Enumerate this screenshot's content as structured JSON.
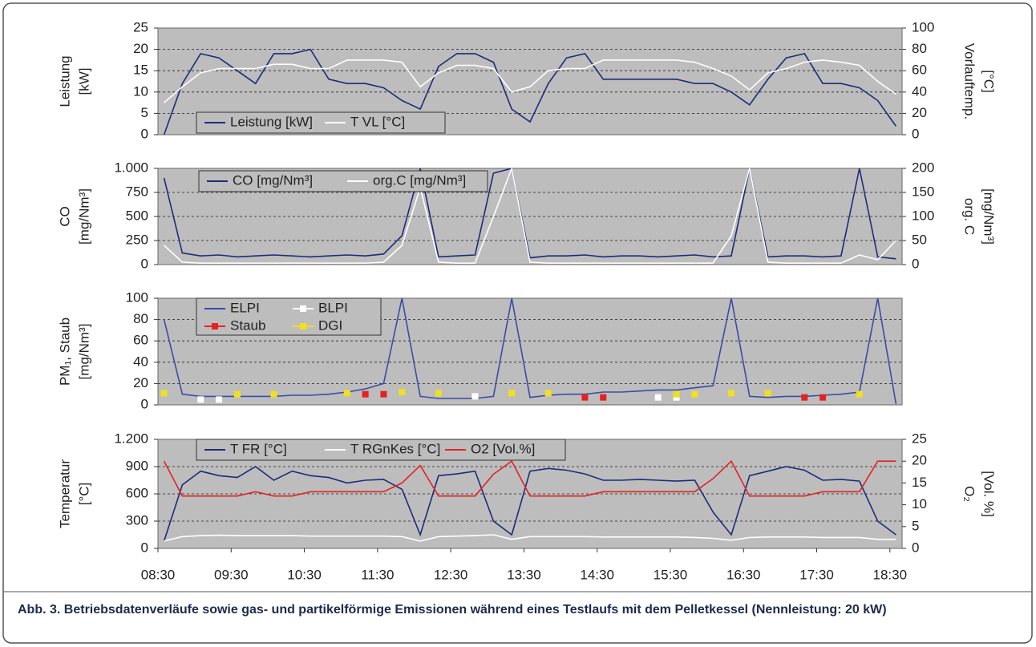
{
  "chart_data": [
    {
      "type": "line",
      "ylabel": [
        "Leistung",
        "[kW]"
      ],
      "y2label": [
        "Vorlauftemp.",
        "[°C]"
      ],
      "x": [
        "08:35",
        "08:50",
        "09:05",
        "09:20",
        "09:35",
        "09:50",
        "10:05",
        "10:20",
        "10:35",
        "10:50",
        "11:05",
        "11:20",
        "11:35",
        "11:50",
        "12:05",
        "12:20",
        "12:35",
        "12:50",
        "13:05",
        "13:20",
        "13:35",
        "13:50",
        "14:05",
        "14:20",
        "14:35",
        "14:50",
        "15:05",
        "15:20",
        "15:35",
        "15:50",
        "16:05",
        "16:20",
        "16:35",
        "16:50",
        "17:05",
        "17:20",
        "17:35",
        "17:50",
        "18:05",
        "18:20",
        "18:35"
      ],
      "xlim": [
        "08:30",
        "18:40"
      ],
      "ylim": [
        0,
        25
      ],
      "yticks": [
        0,
        5,
        10,
        15,
        20,
        25
      ],
      "y2lim": [
        0,
        100
      ],
      "y2ticks": [
        0,
        20,
        40,
        60,
        80,
        100
      ],
      "grid": true,
      "legend": "bottom-left",
      "series": [
        {
          "name": "Leistung [kW]",
          "color": "#1f2a7a",
          "values": [
            0,
            12,
            19,
            18,
            15,
            12,
            19,
            19,
            20,
            13,
            12,
            12,
            11,
            8,
            6,
            16,
            19,
            19,
            17,
            6,
            3,
            12,
            18,
            19,
            13,
            13,
            13,
            13,
            13,
            12,
            12,
            10,
            7,
            13,
            18,
            19,
            12,
            12,
            11,
            8,
            2
          ]
        },
        {
          "name": "T VL [°C]",
          "color": "#ffffff",
          "axis": "y2",
          "values": [
            30,
            45,
            58,
            62,
            62,
            62,
            66,
            66,
            62,
            62,
            70,
            70,
            70,
            68,
            45,
            58,
            65,
            65,
            62,
            40,
            45,
            60,
            62,
            62,
            70,
            70,
            70,
            70,
            70,
            68,
            62,
            55,
            42,
            58,
            62,
            68,
            70,
            68,
            65,
            50,
            38
          ]
        }
      ]
    },
    {
      "type": "line",
      "ylabel": [
        "CO",
        "[mg/Nm³]"
      ],
      "y2label": [
        "org. C",
        "[mg/Nm³]"
      ],
      "x": [
        "08:35",
        "08:50",
        "09:05",
        "09:20",
        "09:35",
        "09:50",
        "10:05",
        "10:20",
        "10:35",
        "10:50",
        "11:05",
        "11:20",
        "11:35",
        "11:50",
        "12:05",
        "12:20",
        "12:35",
        "12:50",
        "13:05",
        "13:20",
        "13:35",
        "13:50",
        "14:05",
        "14:20",
        "14:35",
        "14:50",
        "15:05",
        "15:20",
        "15:35",
        "15:50",
        "16:05",
        "16:20",
        "16:35",
        "16:50",
        "17:05",
        "17:20",
        "17:35",
        "17:50",
        "18:05",
        "18:20",
        "18:35"
      ],
      "xlim": [
        "08:30",
        "18:40"
      ],
      "ylim": [
        0,
        1000
      ],
      "yticks": [
        0,
        250,
        500,
        750,
        {
          "value": 1000,
          "label": "1.000"
        }
      ],
      "y2lim": [
        0,
        200
      ],
      "y2ticks": [
        0,
        50,
        100,
        150,
        200
      ],
      "grid": true,
      "legend": "top-left",
      "series": [
        {
          "name": "CO [mg/Nm³]",
          "color": "#1f2a7a",
          "values": [
            900,
            120,
            90,
            100,
            80,
            90,
            100,
            90,
            80,
            90,
            100,
            90,
            110,
            300,
            1000,
            80,
            90,
            100,
            950,
            1000,
            70,
            90,
            90,
            100,
            80,
            90,
            90,
            80,
            90,
            100,
            80,
            90,
            1000,
            80,
            90,
            90,
            80,
            90,
            1000,
            80,
            60
          ]
        },
        {
          "name": "org.C [mg/Nm³]",
          "color": "#ffffff",
          "axis": "y2",
          "values": [
            40,
            5,
            3,
            3,
            3,
            3,
            3,
            3,
            3,
            3,
            3,
            3,
            5,
            40,
            160,
            5,
            3,
            3,
            100,
            200,
            5,
            3,
            3,
            3,
            3,
            3,
            3,
            3,
            3,
            3,
            3,
            60,
            200,
            5,
            3,
            3,
            3,
            3,
            20,
            10,
            50
          ]
        }
      ]
    },
    {
      "type": "line",
      "ylabel": [
        "PM₁, Staub",
        "[mg/Nm³]"
      ],
      "x": [
        "08:35",
        "08:50",
        "09:05",
        "09:20",
        "09:35",
        "09:50",
        "10:05",
        "10:20",
        "10:35",
        "10:50",
        "11:05",
        "11:20",
        "11:35",
        "11:50",
        "12:05",
        "12:20",
        "12:35",
        "12:50",
        "13:05",
        "13:20",
        "13:35",
        "13:50",
        "14:05",
        "14:20",
        "14:35",
        "14:50",
        "15:05",
        "15:20",
        "15:35",
        "15:50",
        "16:05",
        "16:20",
        "16:35",
        "16:50",
        "17:05",
        "17:20",
        "17:35",
        "17:50",
        "18:05",
        "18:20",
        "18:35"
      ],
      "xlim": [
        "08:30",
        "18:40"
      ],
      "ylim": [
        0,
        100
      ],
      "yticks": [
        0,
        20,
        40,
        60,
        80,
        100
      ],
      "grid": true,
      "legend": "top-left",
      "series": [
        {
          "name": "ELPI",
          "color": "#3a4ca8",
          "values": [
            80,
            10,
            8,
            8,
            8,
            8,
            8,
            9,
            9,
            10,
            12,
            15,
            20,
            100,
            8,
            6,
            6,
            6,
            8,
            100,
            7,
            9,
            10,
            10,
            12,
            12,
            13,
            14,
            14,
            16,
            18,
            100,
            8,
            7,
            8,
            8,
            9,
            10,
            12,
            100,
            1
          ]
        },
        {
          "name": "BLPI",
          "color": "#ffffff",
          "marker": "square",
          "values": [
            null,
            null,
            5,
            5,
            null,
            null,
            null,
            null,
            null,
            null,
            null,
            null,
            null,
            null,
            null,
            null,
            null,
            8,
            null,
            null,
            null,
            null,
            null,
            null,
            null,
            null,
            null,
            7,
            7,
            null,
            null,
            null,
            null,
            null,
            null,
            null,
            null,
            null,
            null,
            null,
            null
          ]
        },
        {
          "name": "Staub",
          "color": "#e52222",
          "marker": "square",
          "values": [
            null,
            null,
            null,
            null,
            null,
            null,
            null,
            null,
            null,
            null,
            null,
            10,
            10,
            null,
            null,
            null,
            null,
            null,
            null,
            null,
            null,
            null,
            null,
            7,
            7,
            null,
            null,
            null,
            null,
            null,
            null,
            null,
            null,
            null,
            null,
            7,
            7,
            null,
            null,
            null,
            null
          ]
        },
        {
          "name": "DGI",
          "color": "#f0e020",
          "marker": "square",
          "values": [
            11,
            null,
            null,
            null,
            10,
            null,
            10,
            null,
            null,
            null,
            11,
            null,
            null,
            12,
            null,
            11,
            null,
            null,
            null,
            11,
            null,
            11,
            null,
            null,
            null,
            null,
            null,
            null,
            10,
            10,
            null,
            11,
            null,
            11,
            null,
            null,
            null,
            null,
            10,
            null,
            null
          ]
        }
      ]
    },
    {
      "type": "line",
      "ylabel": [
        "Temperatur",
        "[°C]"
      ],
      "y2label": [
        "O₂",
        "[Vol. %]"
      ],
      "x": [
        "08:35",
        "08:50",
        "09:05",
        "09:20",
        "09:35",
        "09:50",
        "10:05",
        "10:20",
        "10:35",
        "10:50",
        "11:05",
        "11:20",
        "11:35",
        "11:50",
        "12:05",
        "12:20",
        "12:35",
        "12:50",
        "13:05",
        "13:20",
        "13:35",
        "13:50",
        "14:05",
        "14:20",
        "14:35",
        "14:50",
        "15:05",
        "15:20",
        "15:35",
        "15:50",
        "16:05",
        "16:20",
        "16:35",
        "16:50",
        "17:05",
        "17:20",
        "17:35",
        "17:50",
        "18:05",
        "18:20",
        "18:35"
      ],
      "xlim": [
        "08:30",
        "18:40"
      ],
      "xticks": [
        "08:30",
        "09:30",
        "10:30",
        "11:30",
        "12:30",
        "13:30",
        "14:30",
        "15:30",
        "16:30",
        "17:30",
        "18:30"
      ],
      "ylim": [
        0,
        1200
      ],
      "yticks": [
        0,
        300,
        600,
        900,
        {
          "value": 1200,
          "label": "1.200"
        }
      ],
      "y2lim": [
        0,
        25
      ],
      "y2ticks": [
        0,
        5,
        10,
        15,
        20,
        25
      ],
      "grid": true,
      "legend": "top-left",
      "series": [
        {
          "name": "T FR [°C]",
          "color": "#1f2a7a",
          "values": [
            80,
            700,
            850,
            800,
            780,
            900,
            750,
            850,
            800,
            780,
            720,
            750,
            760,
            650,
            150,
            800,
            820,
            850,
            300,
            150,
            850,
            880,
            860,
            820,
            750,
            750,
            760,
            750,
            740,
            750,
            400,
            150,
            800,
            850,
            900,
            860,
            750,
            760,
            740,
            300,
            150
          ]
        },
        {
          "name": "T RGnKes [°C]",
          "color": "#ffffff",
          "values": [
            80,
            130,
            140,
            145,
            140,
            140,
            140,
            140,
            135,
            135,
            135,
            135,
            135,
            130,
            80,
            130,
            135,
            140,
            150,
            100,
            130,
            130,
            130,
            130,
            125,
            125,
            125,
            125,
            125,
            120,
            110,
            90,
            120,
            125,
            125,
            125,
            120,
            120,
            120,
            100,
            100
          ]
        },
        {
          "name": "O2 [Vol.%]",
          "color": "#e52222",
          "axis": "y2",
          "values": [
            20,
            12,
            12,
            12,
            12,
            13,
            12,
            12,
            13,
            13,
            13,
            13,
            13,
            15,
            19,
            12,
            12,
            12,
            17,
            20,
            12,
            12,
            12,
            12,
            13,
            13,
            13,
            13,
            13,
            13,
            16,
            20,
            12,
            12,
            12,
            12,
            13,
            13,
            13,
            20,
            20
          ]
        }
      ]
    }
  ],
  "caption": "Abb. 3. Betriebsdatenverläufe sowie gas- und partikelförmige Emissionen während eines Testlaufs mit dem Pelletkessel (Nennleistung: 20 kW)"
}
